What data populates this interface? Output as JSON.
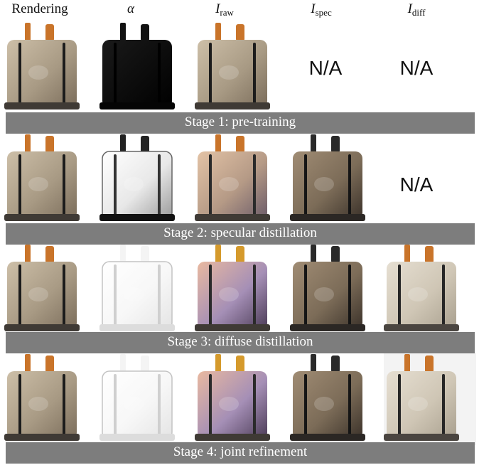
{
  "headers": {
    "rendering": "Rendering",
    "alpha": "α",
    "raw_main": "I",
    "raw_sub": "raw",
    "spec_main": "I",
    "spec_sub": "spec",
    "diff_main": "I",
    "diff_sub": "diff"
  },
  "stages": [
    {
      "label": "Stage 1: pre-training",
      "spec": "N/A",
      "diff": "N/A"
    },
    {
      "label": "Stage 2: specular distillation",
      "diff": "N/A"
    },
    {
      "label": "Stage 3: diffuse distillation"
    },
    {
      "label": "Stage 4: joint refinement"
    }
  ],
  "colors": {
    "band": "#7d7d7d",
    "knob": "#c9742a",
    "rendering_body": "#a89a84",
    "alpha_dark": "#0c0c0c",
    "alpha_light": "#f7f7f7",
    "raw_body": "#b59a86",
    "spec_body": "#7c6c58",
    "diff_body": "#cfc6b5",
    "metal_base": "#3f3a35",
    "stripe": "#1c1c1c"
  }
}
